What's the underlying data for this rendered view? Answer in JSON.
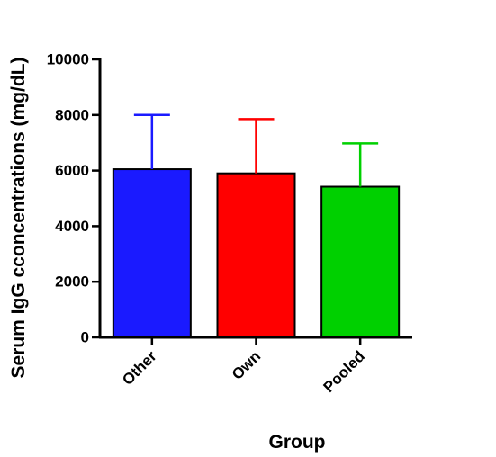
{
  "chart_data": {
    "type": "bar",
    "title": "",
    "xlabel": "Group",
    "ylabel": "Serum IgG cconcentrations (mg/dL)",
    "categories": [
      "Other",
      "Own",
      "Pooled"
    ],
    "values": [
      6050,
      5900,
      5420
    ],
    "errors": [
      1950,
      1950,
      1560
    ],
    "colors": [
      "#1a1aff",
      "#ff0000",
      "#00d000"
    ],
    "ylim": [
      0,
      10000
    ],
    "yticks": [
      0,
      2000,
      4000,
      6000,
      8000,
      10000
    ],
    "grid": false,
    "legend": "none"
  }
}
